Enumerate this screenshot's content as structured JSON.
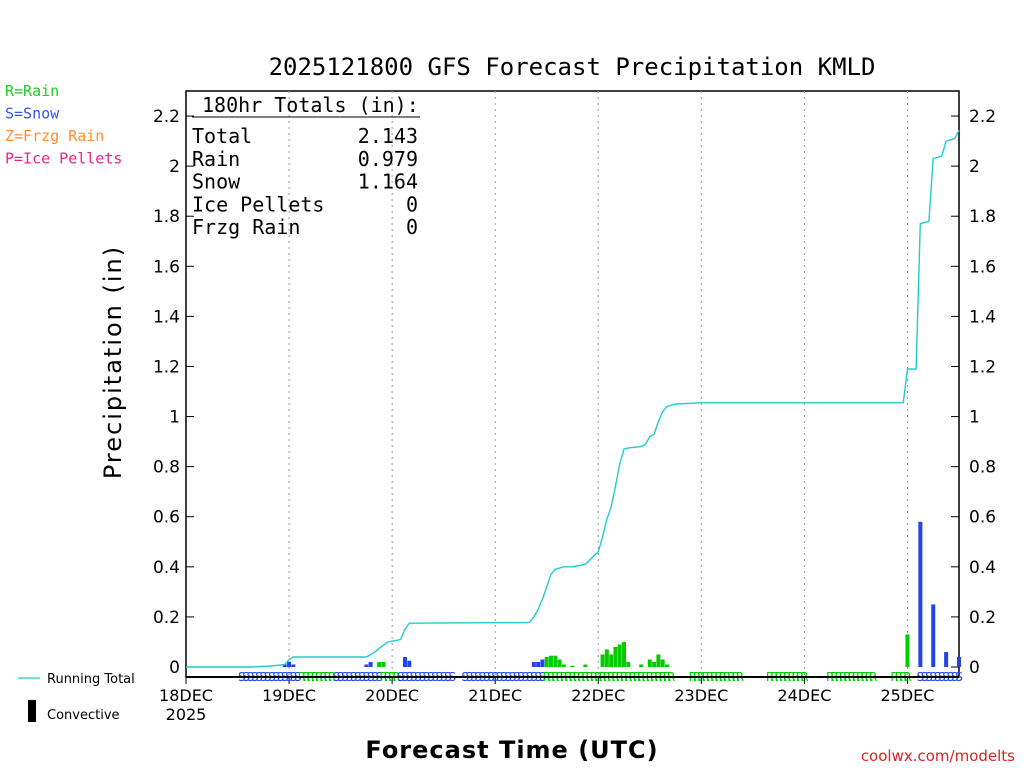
{
  "title": "2025121800 GFS Forecast Precipitation KMLD",
  "legend_codes": [
    {
      "text": "R=Rain",
      "color": "#22cc22"
    },
    {
      "text": "S=Snow",
      "color": "#3355ee"
    },
    {
      "text": "Z=Frzg Rain",
      "color": "#ff8c33"
    },
    {
      "text": "P=Ice Pellets",
      "color": "#ee2288"
    }
  ],
  "totals": {
    "header": "180hr Totals (in):",
    "rows": [
      {
        "label": "Total",
        "value": "2.143"
      },
      {
        "label": "Rain",
        "value": "0.979"
      },
      {
        "label": "Snow",
        "value": "1.164"
      },
      {
        "label": "Ice Pellets",
        "value": "0"
      },
      {
        "label": "Frzg Rain",
        "value": "0"
      }
    ]
  },
  "bottom_legend": {
    "running_total": "Running Total",
    "convective": "Convective"
  },
  "credit": "coolwx.com/modelts",
  "colors": {
    "rain": "#00cc00",
    "snow": "#2244ee",
    "running_total": "#22cccc",
    "credit": "#dd2222"
  },
  "chart_data": {
    "type": "bar",
    "title": "2025121800 GFS Forecast Precipitation KMLD",
    "xlabel": "Forecast Time (UTC)",
    "ylabel": "Precipitation (in)",
    "ylim": [
      0,
      2.3
    ],
    "xlim_hours": [
      0,
      180
    ],
    "y_ticks": [
      0,
      0.2,
      0.4,
      0.6,
      0.8,
      1,
      1.2,
      1.4,
      1.6,
      1.8,
      2,
      2.2
    ],
    "y_tick_labels": [
      "0",
      "0.2",
      "0.4",
      "0.6",
      "0.8",
      "1",
      "1.2",
      "1.4",
      "1.6",
      "1.8",
      "2",
      "2.2"
    ],
    "x_ticks": [
      {
        "hour": 0,
        "label": "18DEC",
        "sublabel": "2025"
      },
      {
        "hour": 24,
        "label": "19DEC"
      },
      {
        "hour": 48,
        "label": "20DEC"
      },
      {
        "hour": 72,
        "label": "21DEC"
      },
      {
        "hour": 96,
        "label": "22DEC"
      },
      {
        "hour": 120,
        "label": "23DEC"
      },
      {
        "hour": 144,
        "label": "24DEC"
      },
      {
        "hour": 168,
        "label": "25DEC"
      }
    ],
    "rain_bars": [
      {
        "hour": 45,
        "value": 0.02
      },
      {
        "hour": 46,
        "value": 0.02
      },
      {
        "hour": 84,
        "value": 0.04
      },
      {
        "hour": 85,
        "value": 0.045
      },
      {
        "hour": 86,
        "value": 0.045
      },
      {
        "hour": 87,
        "value": 0.03
      },
      {
        "hour": 88,
        "value": 0.01
      },
      {
        "hour": 90,
        "value": 0.005
      },
      {
        "hour": 93,
        "value": 0.01
      },
      {
        "hour": 97,
        "value": 0.05
      },
      {
        "hour": 98,
        "value": 0.07
      },
      {
        "hour": 99,
        "value": 0.05
      },
      {
        "hour": 100,
        "value": 0.08
      },
      {
        "hour": 101,
        "value": 0.09
      },
      {
        "hour": 102,
        "value": 0.1
      },
      {
        "hour": 103,
        "value": 0.02
      },
      {
        "hour": 106,
        "value": 0.01
      },
      {
        "hour": 108,
        "value": 0.03
      },
      {
        "hour": 109,
        "value": 0.02
      },
      {
        "hour": 110,
        "value": 0.05
      },
      {
        "hour": 111,
        "value": 0.03
      },
      {
        "hour": 112,
        "value": 0.01
      },
      {
        "hour": 168,
        "value": 0.13
      }
    ],
    "snow_bars": [
      {
        "hour": 23,
        "value": 0.01
      },
      {
        "hour": 24,
        "value": 0.02
      },
      {
        "hour": 25,
        "value": 0.01
      },
      {
        "hour": 42,
        "value": 0.01
      },
      {
        "hour": 43,
        "value": 0.02
      },
      {
        "hour": 51,
        "value": 0.04
      },
      {
        "hour": 52,
        "value": 0.025
      },
      {
        "hour": 81,
        "value": 0.02
      },
      {
        "hour": 82,
        "value": 0.02
      },
      {
        "hour": 83,
        "value": 0.03
      },
      {
        "hour": 171,
        "value": 0.58
      },
      {
        "hour": 174,
        "value": 0.25
      },
      {
        "hour": 177,
        "value": 0.06
      },
      {
        "hour": 180,
        "value": 0.04
      }
    ],
    "running_total": [
      [
        0,
        0
      ],
      [
        15,
        0
      ],
      [
        20,
        0.004
      ],
      [
        23,
        0.01
      ],
      [
        24,
        0.03
      ],
      [
        25,
        0.04
      ],
      [
        42,
        0.04
      ],
      [
        43,
        0.05
      ],
      [
        44,
        0.06
      ],
      [
        45,
        0.075
      ],
      [
        47,
        0.1
      ],
      [
        50,
        0.11
      ],
      [
        51,
        0.15
      ],
      [
        52,
        0.175
      ],
      [
        80,
        0.178
      ],
      [
        81,
        0.2
      ],
      [
        82,
        0.23
      ],
      [
        83,
        0.27
      ],
      [
        84,
        0.32
      ],
      [
        85,
        0.37
      ],
      [
        86,
        0.39
      ],
      [
        88,
        0.4
      ],
      [
        90,
        0.4
      ],
      [
        93,
        0.41
      ],
      [
        96,
        0.46
      ],
      [
        97,
        0.52
      ],
      [
        98,
        0.59
      ],
      [
        99,
        0.64
      ],
      [
        100,
        0.72
      ],
      [
        101,
        0.81
      ],
      [
        102,
        0.87
      ],
      [
        103,
        0.875
      ],
      [
        106,
        0.88
      ],
      [
        107,
        0.89
      ],
      [
        108,
        0.92
      ],
      [
        109,
        0.93
      ],
      [
        110,
        0.98
      ],
      [
        111,
        1.02
      ],
      [
        112,
        1.04
      ],
      [
        114,
        1.05
      ],
      [
        120,
        1.055
      ],
      [
        167,
        1.055
      ],
      [
        168,
        1.19
      ],
      [
        169,
        1.19
      ],
      [
        170,
        1.19
      ],
      [
        171,
        1.77
      ],
      [
        173,
        1.78
      ],
      [
        174,
        2.03
      ],
      [
        176,
        2.04
      ],
      [
        177,
        2.1
      ],
      [
        179,
        2.11
      ],
      [
        180,
        2.143
      ]
    ],
    "ptype_letters": [
      {
        "from": 13,
        "to": 26,
        "type": "S"
      },
      {
        "from": 27,
        "to": 34,
        "type": "R"
      },
      {
        "from": 35,
        "to": 45,
        "type": "S"
      },
      {
        "from": 46,
        "to": 49,
        "type": "R"
      },
      {
        "from": 50,
        "to": 62,
        "type": "S"
      },
      {
        "from": 65,
        "to": 79,
        "type": "S"
      },
      {
        "from": 80,
        "to": 83,
        "type": "S"
      },
      {
        "from": 84,
        "to": 113,
        "type": "R"
      },
      {
        "from": 118,
        "to": 129,
        "type": "R"
      },
      {
        "from": 136,
        "to": 144,
        "type": "R"
      },
      {
        "from": 150,
        "to": 160,
        "type": "R"
      },
      {
        "from": 165,
        "to": 168,
        "type": "R"
      },
      {
        "from": 171,
        "to": 180,
        "type": "S"
      }
    ]
  }
}
